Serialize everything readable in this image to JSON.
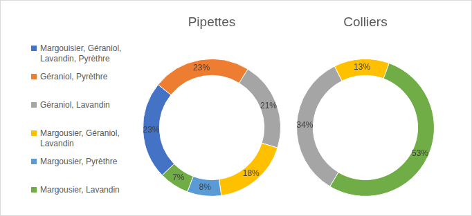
{
  "chart_data": [
    {
      "type": "doughnut",
      "title": "Pipettes",
      "categories": [
        "Margouisier, Géraniol, Lavandin, Pyrèthre",
        "Géraniol, Pyrèthre",
        "Géraniol, Lavandin",
        "Margousier, Géraniol, Lavandin",
        "Margousier, Pyrèthre",
        "Margousier, Lavandin"
      ],
      "values": [
        23,
        23,
        21,
        18,
        8,
        7
      ],
      "value_labels": [
        "23%",
        "23%",
        "21%",
        "18%",
        "8%",
        "7%"
      ],
      "colors": [
        "#4472c4",
        "#ed7d31",
        "#a5a5a5",
        "#ffc000",
        "#5b9bd5",
        "#70ad47"
      ],
      "data_labels": true,
      "legend": "left"
    },
    {
      "type": "doughnut",
      "title": "Colliers",
      "categories": [
        "Géraniol, Lavandin",
        "Margousier, Géraniol, Lavandin",
        "Margousier, Lavandin"
      ],
      "values": [
        34,
        13,
        53
      ],
      "value_labels": [
        "34%",
        "13%",
        "53%"
      ],
      "colors": [
        "#a5a5a5",
        "#ffc000",
        "#70ad47"
      ],
      "data_labels": true
    }
  ]
}
